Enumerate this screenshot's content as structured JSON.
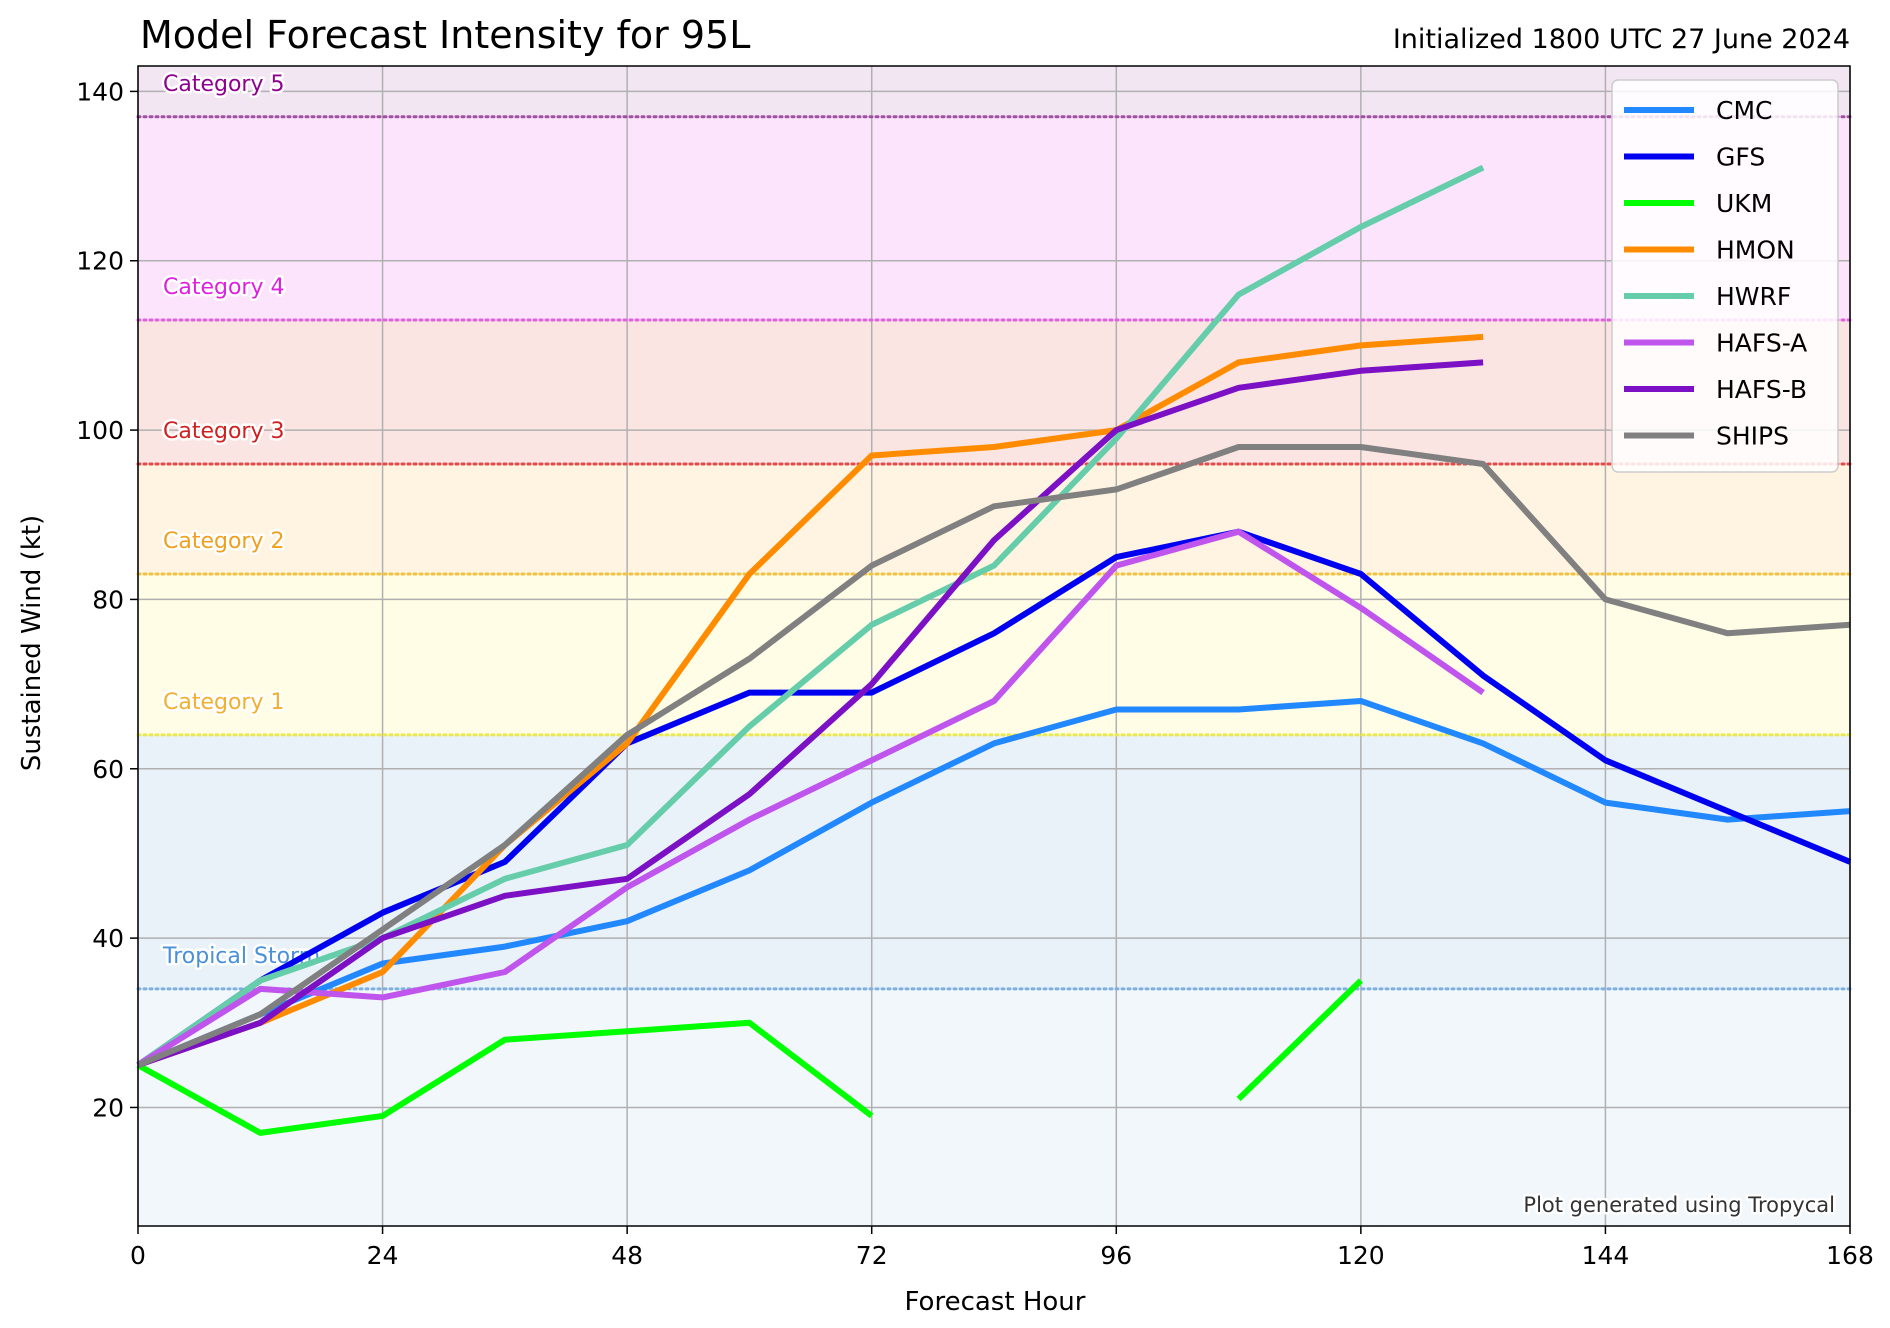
{
  "chart_data": {
    "type": "line",
    "title": "Model Forecast Intensity for 95L",
    "subtitle": "Initialized 1800 UTC 27 June 2024",
    "xlabel": "Forecast Hour",
    "ylabel": "Sustained Wind (kt)",
    "xlim": [
      0,
      168
    ],
    "ylim": [
      6,
      143
    ],
    "xticks": [
      0,
      24,
      48,
      72,
      96,
      120,
      144,
      168
    ],
    "yticks": [
      20,
      40,
      60,
      80,
      100,
      120,
      140
    ],
    "grid": true,
    "legend_position": "top-right",
    "credit": "Plot generated using Tropycal",
    "categories": [
      {
        "label": "Tropical Storm",
        "threshold": 34,
        "band_top": 64,
        "band_color": "#e9f1f9",
        "line_color": "#7fb0e0",
        "label_color": "#4a90d9"
      },
      {
        "label": "Category 1",
        "threshold": 64,
        "band_top": 83,
        "band_color": "#fffde6",
        "line_color": "#eaea50",
        "label_color": "#f0b030"
      },
      {
        "label": "Category 2",
        "threshold": 83,
        "band_top": 96,
        "band_color": "#fff4e1",
        "line_color": "#f4c040",
        "label_color": "#f0a020"
      },
      {
        "label": "Category 3",
        "threshold": 96,
        "band_top": 113,
        "band_color": "#fbe5e3",
        "line_color": "#e84848",
        "label_color": "#d02020"
      },
      {
        "label": "Category 4",
        "threshold": 113,
        "band_top": 137,
        "band_color": "#fde4fd",
        "line_color": "#e060e0",
        "label_color": "#e020e0"
      },
      {
        "label": "Category 5",
        "threshold": 137,
        "band_top": 143,
        "band_color": "#f3e6f3",
        "line_color": "#a050a0",
        "label_color": "#900090"
      }
    ],
    "below_ts_band_color": "#f2f7fc",
    "series": [
      {
        "name": "CMC",
        "color": "#2188ff",
        "x": [
          0,
          12,
          24,
          36,
          48,
          60,
          72,
          84,
          96,
          108,
          120,
          132,
          144,
          156,
          168
        ],
        "y": [
          25,
          31,
          37,
          39,
          42,
          48,
          56,
          63,
          67,
          67,
          68,
          63,
          56,
          54,
          55
        ]
      },
      {
        "name": "GFS",
        "color": "#0000f0",
        "x": [
          0,
          12,
          24,
          36,
          48,
          60,
          72,
          84,
          96,
          108,
          120,
          132,
          144,
          156,
          168
        ],
        "y": [
          25,
          35,
          43,
          49,
          63,
          69,
          69,
          76,
          85,
          88,
          83,
          71,
          61,
          55,
          49
        ]
      },
      {
        "name": "UKM",
        "color": "#00ff00",
        "x": [
          0,
          12,
          24,
          36,
          48,
          60,
          72,
          84,
          96,
          108,
          120
        ],
        "y": [
          25,
          17,
          19,
          28,
          29,
          30,
          19,
          null,
          null,
          21,
          35
        ]
      },
      {
        "name": "HMON",
        "color": "#ff8c00",
        "x": [
          0,
          12,
          24,
          36,
          48,
          60,
          72,
          84,
          96,
          108,
          120,
          132
        ],
        "y": [
          25,
          30,
          36,
          51,
          63,
          83,
          97,
          98,
          100,
          108,
          110,
          111
        ]
      },
      {
        "name": "HWRF",
        "color": "#66cdaa",
        "x": [
          0,
          12,
          24,
          36,
          48,
          60,
          72,
          84,
          96,
          108,
          120,
          132
        ],
        "y": [
          25,
          35,
          40,
          47,
          51,
          65,
          77,
          84,
          99,
          116,
          124,
          131
        ]
      },
      {
        "name": "HAFS-A",
        "color": "#bf55ec",
        "x": [
          0,
          12,
          24,
          36,
          48,
          60,
          72,
          84,
          96,
          108,
          120,
          132
        ],
        "y": [
          25,
          34,
          33,
          36,
          46,
          54,
          61,
          68,
          84,
          88,
          79,
          69
        ]
      },
      {
        "name": "HAFS-B",
        "color": "#7b10c4",
        "x": [
          0,
          12,
          24,
          36,
          48,
          60,
          72,
          84,
          96,
          108,
          120,
          132
        ],
        "y": [
          25,
          30,
          40,
          45,
          47,
          57,
          70,
          87,
          100,
          105,
          107,
          108
        ]
      },
      {
        "name": "SHIPS",
        "color": "#808080",
        "x": [
          0,
          12,
          24,
          36,
          48,
          60,
          72,
          84,
          96,
          108,
          120,
          132,
          144,
          156,
          168
        ],
        "y": [
          25,
          31,
          41,
          51,
          64,
          73,
          84,
          91,
          93,
          98,
          98,
          96,
          80,
          76,
          77
        ]
      }
    ]
  }
}
